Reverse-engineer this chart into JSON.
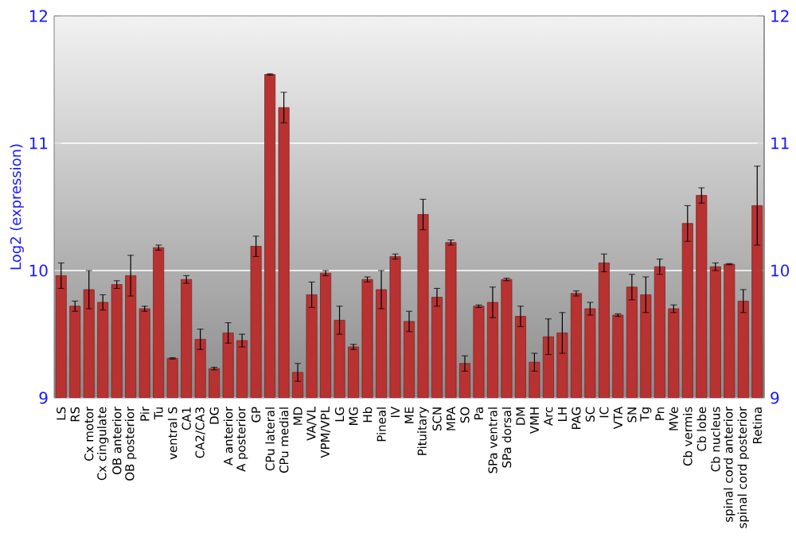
{
  "chart_data": {
    "type": "bar",
    "ylabel": "Log2 (expression)",
    "categories": [
      "LS",
      "RS",
      "Cx motor",
      "Cx cingulate",
      "OB anterior",
      "OB posterior",
      "Pir",
      "Tu",
      "ventral S",
      "CA1",
      "CA2/CA3",
      "DG",
      "A anterior",
      "A posterior",
      "GP",
      "CPu lateral",
      "CPu medial",
      "MD",
      "VA/VL",
      "VPM/VPL",
      "LG",
      "MG",
      "Hb",
      "Pineal",
      "IV",
      "ME",
      "Pituitary",
      "SCN",
      "MPA",
      "SO",
      "Pa",
      "SPa ventral",
      "SPa dorsal",
      "DM",
      "VMH",
      "Arc",
      "LH",
      "PAG",
      "SC",
      "IC",
      "VTA",
      "SN",
      "Tg",
      "Pn",
      "MVe",
      "Cb vermis",
      "Cb lobe",
      "Cb nucleus",
      "spinal cord anterior",
      "spinal cord posterior",
      "Retina"
    ],
    "values": [
      9.96,
      9.72,
      9.85,
      9.75,
      9.89,
      9.96,
      9.7,
      10.18,
      9.31,
      9.93,
      9.46,
      9.23,
      9.51,
      9.45,
      10.19,
      11.54,
      11.28,
      9.2,
      9.81,
      9.98,
      9.61,
      9.4,
      9.93,
      9.85,
      10.11,
      9.6,
      10.44,
      9.79,
      10.22,
      9.27,
      9.72,
      9.75,
      9.93,
      9.64,
      9.28,
      9.48,
      9.51,
      9.82,
      9.7,
      10.06,
      9.65,
      9.87,
      9.81,
      10.03,
      9.7,
      10.37,
      10.59,
      10.03,
      10.05,
      9.76,
      10.51
    ],
    "errors": [
      0.1,
      0.04,
      0.15,
      0.06,
      0.03,
      0.16,
      0.02,
      0.02,
      0.005,
      0.03,
      0.08,
      0.01,
      0.08,
      0.05,
      0.08,
      0.005,
      0.12,
      0.07,
      0.1,
      0.02,
      0.11,
      0.02,
      0.02,
      0.15,
      0.02,
      0.08,
      0.12,
      0.07,
      0.02,
      0.06,
      0.01,
      0.12,
      0.01,
      0.08,
      0.07,
      0.14,
      0.16,
      0.02,
      0.05,
      0.07,
      0.01,
      0.1,
      0.14,
      0.06,
      0.03,
      0.14,
      0.06,
      0.03,
      0.005,
      0.09,
      0.31
    ],
    "color": "#b83232",
    "ylim": [
      9,
      12
    ],
    "yticks": [
      9,
      10,
      11,
      12
    ],
    "y2lim": [
      9,
      12
    ],
    "y2ticks": [
      9,
      10,
      11,
      12
    ],
    "grid": "y"
  }
}
